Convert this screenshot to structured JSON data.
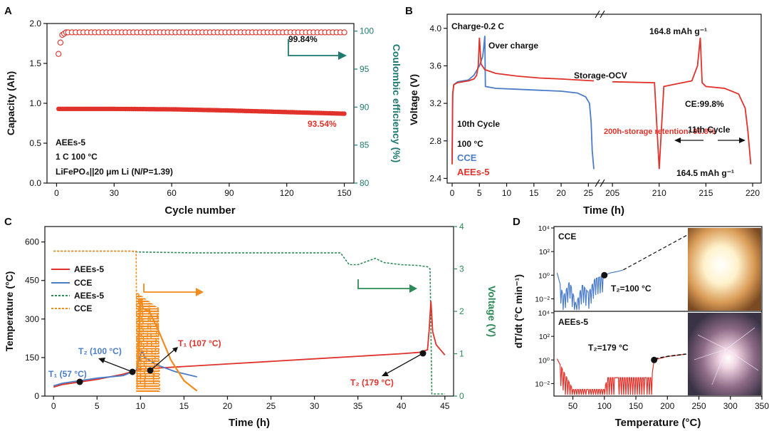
{
  "panel_letters": [
    "A",
    "B",
    "C",
    "D"
  ],
  "colors": {
    "red": "#e0322a",
    "blue": "#4a7cc8",
    "teal": "#1f7a72",
    "green": "#2e8b57",
    "orange": "#f28a1c",
    "black": "#111111"
  },
  "chart_data": [
    {
      "panel": "A",
      "type": "scatter",
      "xlabel": "Cycle number",
      "ylabel": "Capacity (Ah)",
      "y2label": "Coulombic efficiency (%)",
      "xlim": [
        -5,
        155
      ],
      "ylim": [
        0,
        2.0
      ],
      "y2lim": [
        80,
        101
      ],
      "xticks": [
        0,
        30,
        60,
        90,
        120,
        150
      ],
      "yticks": [
        0.0,
        0.5,
        1.0,
        1.5,
        2.0
      ],
      "y2ticks": [
        80,
        85,
        90,
        95,
        100
      ],
      "series": [
        {
          "name": "Capacity",
          "color": "red",
          "axis": "y",
          "x": [
            1,
            10,
            30,
            60,
            90,
            120,
            150
          ],
          "values": [
            0.93,
            0.93,
            0.93,
            0.925,
            0.91,
            0.89,
            0.87
          ]
        },
        {
          "name": "Coulombic efficiency",
          "color": "red",
          "axis": "y2",
          "marker": "open-circle",
          "x": [
            1,
            2,
            3,
            5,
            10,
            30,
            60,
            90,
            120,
            150
          ],
          "values": [
            97,
            98.5,
            99.5,
            99.84,
            99.84,
            99.84,
            99.84,
            99.84,
            99.84,
            99.84
          ]
        }
      ],
      "annotations": [
        "99.84%",
        "93.54%",
        "AEEs-5",
        "1 C   100 °C",
        "LiFePO₄||20 μm Li   (N/P=1.39)"
      ]
    },
    {
      "panel": "B",
      "type": "line",
      "xlabel": "Time (h)",
      "ylabel": "Voltage (V)",
      "ylim": [
        2.35,
        4.15
      ],
      "yticks": [
        2.4,
        2.8,
        3.2,
        3.6,
        4.0
      ],
      "xticks_left": [
        0,
        5,
        10,
        15,
        20,
        25
      ],
      "xticks_right": [
        205,
        210,
        215,
        220
      ],
      "series": [
        {
          "name": "CCE",
          "color": "blue",
          "x": [
            0,
            0.1,
            0.3,
            1,
            2,
            3,
            4,
            5,
            5.6,
            5.8,
            6.0,
            6.1,
            8,
            12,
            16,
            20,
            23,
            24.5,
            25.2,
            25.5,
            25.7,
            26
          ],
          "values": [
            2.6,
            3.3,
            3.4,
            3.43,
            3.44,
            3.45,
            3.5,
            3.6,
            3.7,
            3.8,
            3.92,
            3.38,
            3.36,
            3.35,
            3.34,
            3.33,
            3.31,
            3.27,
            3.2,
            3.0,
            2.7,
            2.5
          ]
        },
        {
          "name": "AEEs-5",
          "color": "red",
          "x": [
            0,
            0.1,
            0.3,
            1,
            2,
            3,
            4,
            4.5,
            4.8,
            5.0,
            5.3,
            6,
            8,
            12,
            16,
            20,
            26,
            205,
            209.5,
            210,
            210.5,
            212,
            213.5,
            214.1,
            214.4,
            214.6,
            215,
            217,
            218.5,
            219.2,
            219.5,
            219.8
          ],
          "values": [
            2.55,
            3.3,
            3.4,
            3.42,
            3.43,
            3.44,
            3.46,
            3.5,
            3.6,
            3.9,
            3.62,
            3.56,
            3.52,
            3.49,
            3.47,
            3.46,
            3.44,
            3.43,
            3.42,
            2.5,
            3.38,
            3.41,
            3.44,
            3.6,
            3.9,
            3.42,
            3.38,
            3.36,
            3.3,
            3.15,
            2.9,
            2.55
          ]
        }
      ],
      "annotations": [
        "Charge-0.2 C",
        "Over charge",
        "Storage-OCV",
        "164.8 mAh g⁻¹",
        "CE:99.8%",
        "10th Cycle",
        "100 °C",
        "CCE",
        "AEEs-5",
        "200h-storage retention: 96.8%",
        "11th Cycle",
        "164.5 mAh g⁻¹"
      ]
    },
    {
      "panel": "C",
      "type": "line",
      "xlabel": "Time (h)",
      "ylabel": "Temperature (°C)",
      "y2label": "Voltage (V)",
      "xlim": [
        -1,
        46
      ],
      "ylim": [
        0,
        660
      ],
      "y2lim": [
        0,
        4
      ],
      "xticks": [
        0,
        5,
        10,
        15,
        20,
        25,
        30,
        35,
        40,
        45
      ],
      "yticks": [
        0,
        150,
        300,
        450,
        600
      ],
      "y2ticks": [
        0,
        1,
        2,
        3,
        4
      ],
      "series": [
        {
          "name": "AEEs-5",
          "color": "red",
          "axis": "y",
          "x": [
            0,
            1,
            3,
            5,
            8,
            10,
            15,
            20,
            25,
            30,
            35,
            40,
            42,
            43,
            43.2,
            43.4,
            43.6,
            44,
            45
          ],
          "values": [
            35,
            45,
            55,
            65,
            85,
            105,
            115,
            125,
            135,
            145,
            155,
            165,
            170,
            180,
            260,
            370,
            250,
            200,
            160
          ]
        },
        {
          "name": "CCE",
          "color": "blue",
          "axis": "y",
          "x": [
            0,
            1,
            3,
            5,
            8,
            9.5,
            10,
            10.2,
            10.5,
            11,
            12,
            14,
            16.5
          ],
          "values": [
            40,
            50,
            60,
            70,
            80,
            100,
            160,
            175,
            150,
            140,
            120,
            95,
            75
          ]
        },
        {
          "name": "AEEs-5",
          "color": "green",
          "axis": "y2",
          "dashed": true,
          "x": [
            0,
            9,
            9.5,
            16,
            17,
            24,
            33,
            34,
            35,
            37,
            38,
            40,
            42,
            43,
            43.3,
            43.5,
            45
          ],
          "values": [
            3.42,
            3.42,
            3.4,
            3.38,
            3.38,
            3.38,
            3.38,
            3.1,
            3.1,
            3.25,
            3.15,
            3.1,
            3.08,
            3.05,
            3.0,
            0.05,
            0.05
          ]
        },
        {
          "name": "CCE",
          "color": "orange",
          "axis": "y2",
          "dashed": true,
          "x": [
            0,
            9.5,
            9.6,
            9.8,
            10,
            10.2,
            10.5,
            11,
            11.5,
            12,
            12.2
          ],
          "values": [
            3.42,
            3.42,
            0.2,
            2.4,
            0.3,
            2.3,
            0.2,
            2.2,
            0.3,
            2.1,
            0.1
          ]
        }
      ],
      "annotations": [
        "T₂ (100 °C)",
        "T₁ (107 °C)",
        "T₁ (57 °C)",
        "T₂ (179 °C)"
      ]
    },
    {
      "panel": "D",
      "type": "line",
      "xlabel": "Temperature (°C)",
      "ylabel": "dT/dt (°C min⁻¹)",
      "xlim": [
        20,
        350
      ],
      "xticks": [
        50,
        100,
        150,
        200,
        250,
        300,
        350
      ],
      "ylim_log": [
        -3,
        4
      ],
      "yticks": [
        "10⁴",
        "10²",
        "10⁰",
        "10⁻²"
      ],
      "subplots": [
        {
          "name": "CCE",
          "color": "blue",
          "x": [
            25,
            35,
            45,
            55,
            65,
            75,
            85,
            100,
            110,
            120,
            130
          ],
          "values_log10": [
            0.2,
            -1.8,
            -0.5,
            -2.5,
            -0.8,
            -1.5,
            -0.3,
            0.0,
            0.2,
            0.3,
            0.45
          ],
          "marker": "T₂=100 °C",
          "extrapolation": "dashed"
        },
        {
          "name": "AEEs-5",
          "color": "red",
          "x": [
            25,
            50,
            75,
            100,
            105,
            125,
            150,
            175,
            179,
            200,
            230
          ],
          "values_log10": [
            0.1,
            -2.5,
            -2.5,
            -2.5,
            -1.5,
            -1.5,
            -1.5,
            -1.5,
            0.0,
            0.3,
            0.5
          ],
          "marker": "T₂=179 °C"
        }
      ]
    }
  ]
}
